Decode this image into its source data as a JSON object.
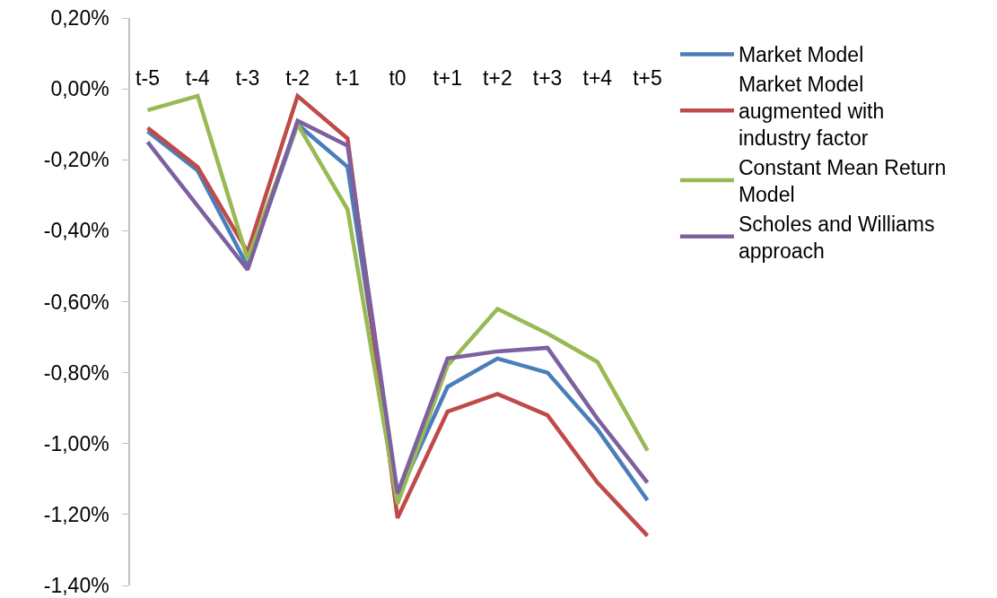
{
  "chart_data": {
    "type": "line",
    "categories": [
      "t-5",
      "t-4",
      "t-3",
      "t-2",
      "t-1",
      "t0",
      "t+1",
      "t+2",
      "t+3",
      "t+4",
      "t+5"
    ],
    "series": [
      {
        "name": "Market Model",
        "color": "#4a7ebb",
        "values": [
          -0.12,
          -0.23,
          -0.5,
          -0.1,
          -0.22,
          -1.15,
          -0.84,
          -0.76,
          -0.8,
          -0.96,
          -1.16
        ]
      },
      {
        "name": "Market Model augmented with industry factor",
        "color": "#be4b48",
        "values": [
          -0.11,
          -0.22,
          -0.46,
          -0.02,
          -0.14,
          -1.21,
          -0.91,
          -0.86,
          -0.92,
          -1.11,
          -1.26
        ]
      },
      {
        "name": "Constant Mean Return Model",
        "color": "#98b954",
        "values": [
          -0.06,
          -0.02,
          -0.48,
          -0.1,
          -0.34,
          -1.17,
          -0.78,
          -0.62,
          -0.69,
          -0.77,
          -1.02
        ]
      },
      {
        "name": "Scholes and Williams approach",
        "color": "#7d60a0",
        "values": [
          -0.15,
          -0.33,
          -0.51,
          -0.09,
          -0.16,
          -1.14,
          -0.76,
          -0.74,
          -0.73,
          -0.93,
          -1.11
        ]
      }
    ],
    "ylim": [
      -1.4,
      0.2
    ],
    "yticks": [
      {
        "value": -1.4,
        "label": "-1,40%"
      },
      {
        "value": -1.2,
        "label": "-1,20%"
      },
      {
        "value": -1,
        "label": "-1,00%"
      },
      {
        "value": -0.8,
        "label": "-0,80%"
      },
      {
        "value": -0.6,
        "label": "-0,60%"
      },
      {
        "value": -0.4,
        "label": "-0,40%"
      },
      {
        "value": -0.2,
        "label": "-0,20%"
      },
      {
        "value": 0,
        "label": "0,00%"
      },
      {
        "value": 0.2,
        "label": "0,20%"
      }
    ],
    "grid": false,
    "legend": "right",
    "marker": "none",
    "line_style": "solid"
  }
}
